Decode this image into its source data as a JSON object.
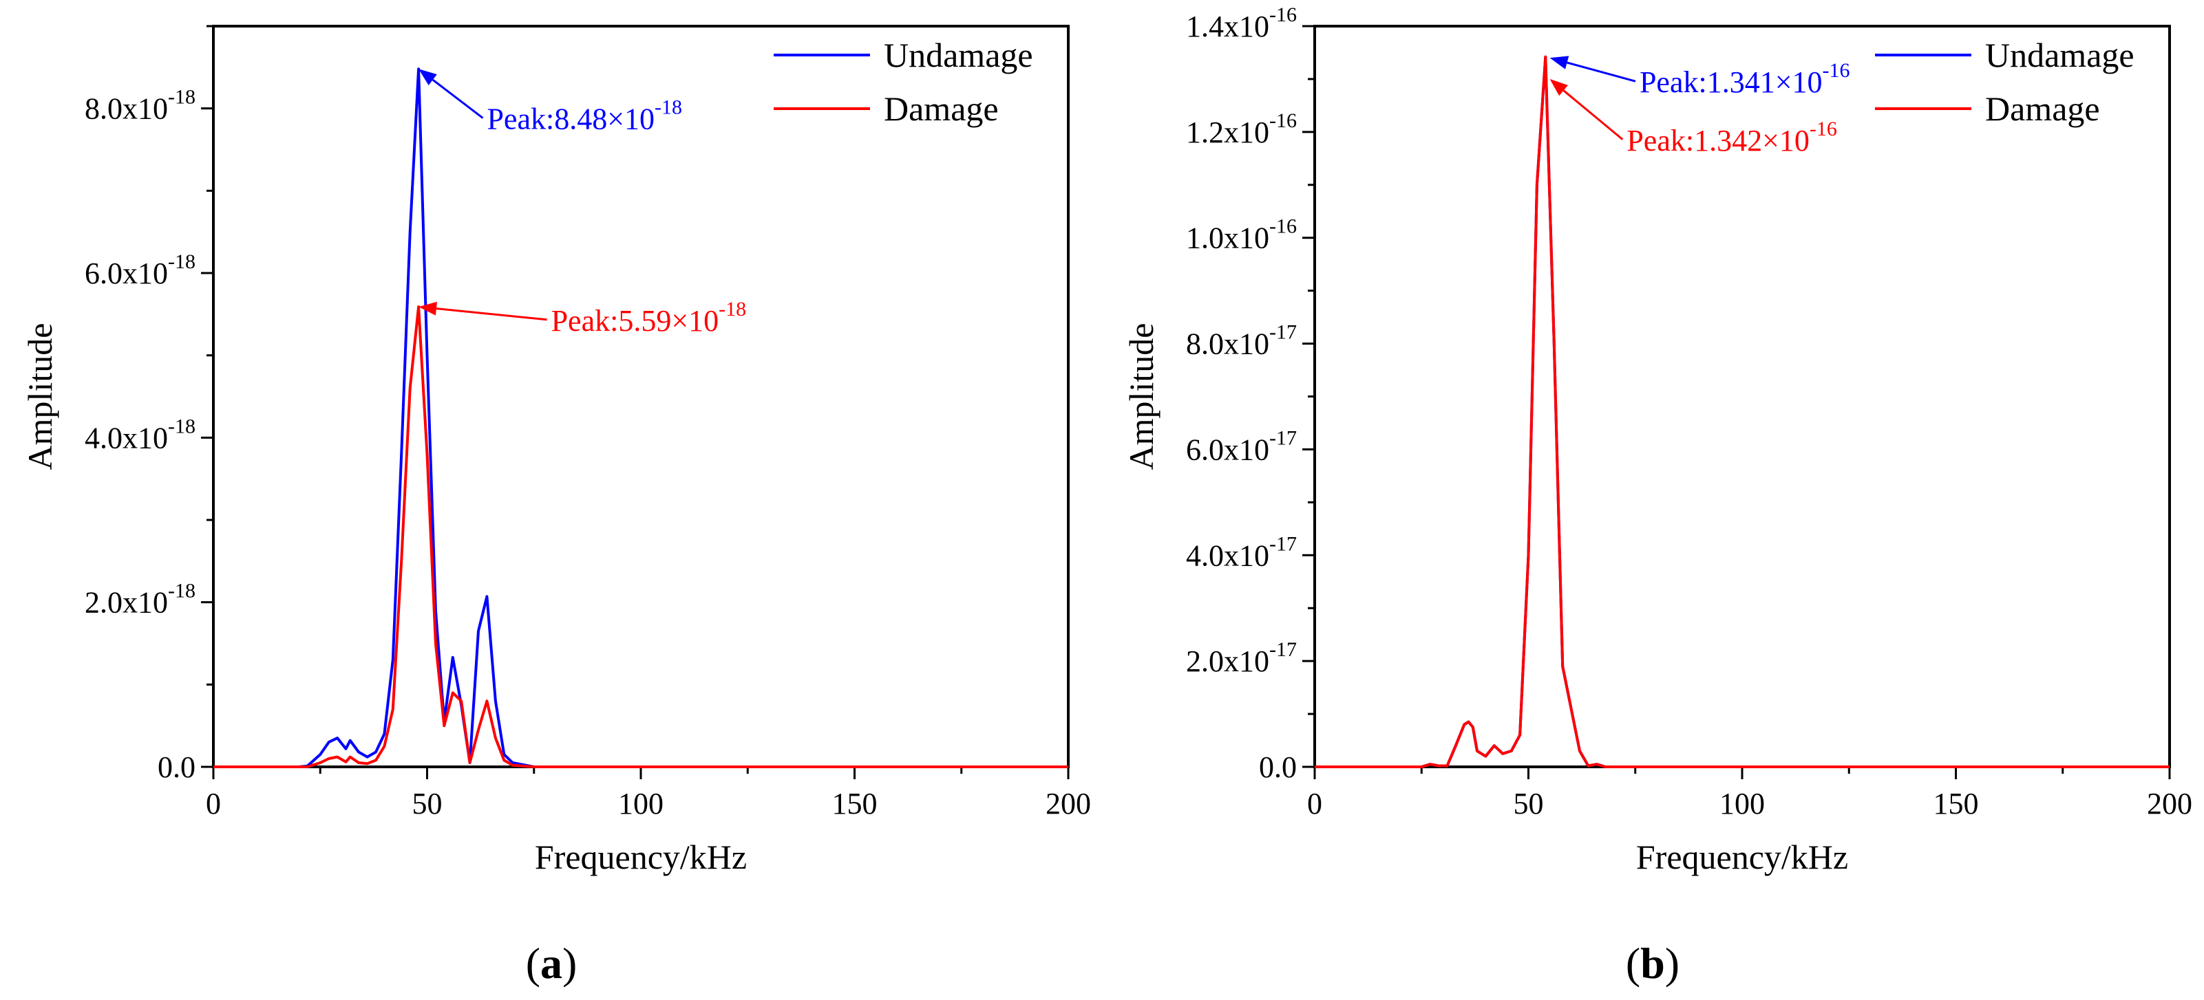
{
  "chart_data": [
    {
      "type": "line",
      "panel_label": "(a)",
      "panel_letter": "a",
      "xlabel": "Frequency/kHz",
      "ylabel": "Amplitude",
      "xlim": [
        0,
        200
      ],
      "ylim": [
        0,
        9e-18
      ],
      "xticks": [
        0,
        50,
        100,
        150,
        200
      ],
      "xtick_labels": [
        "0",
        "50",
        "100",
        "150",
        "200"
      ],
      "yticks": [
        0,
        2e-18,
        4e-18,
        6e-18,
        8e-18
      ],
      "ytick_labels": [
        {
          "mantissa": "0.0",
          "exp": ""
        },
        {
          "mantissa": "2.0x10",
          "exp": "-18"
        },
        {
          "mantissa": "4.0x10",
          "exp": "-18"
        },
        {
          "mantissa": "6.0x10",
          "exp": "-18"
        },
        {
          "mantissa": "8.0x10",
          "exp": "-18"
        }
      ],
      "legend_position": "top-right",
      "series": [
        {
          "name": "Undamage",
          "color": "#0000ff",
          "x": [
            0,
            5,
            10,
            15,
            20,
            22,
            25,
            27,
            29,
            31,
            32,
            34,
            36,
            38,
            40,
            42,
            44,
            46,
            48,
            50,
            52,
            54,
            56,
            58,
            60,
            62,
            64,
            66,
            68,
            70,
            75,
            80,
            100,
            150,
            200
          ],
          "y": [
            0,
            0,
            0,
            0,
            0,
            1e-20,
            1.5e-19,
            3e-19,
            3.5e-19,
            2.2e-19,
            3.2e-19,
            1.8e-19,
            1.2e-19,
            1.8e-19,
            4e-19,
            1.3e-18,
            3.8e-18,
            6.5e-18,
            8.48e-18,
            5e-18,
            1.9e-18,
            5.5e-19,
            1.33e-18,
            7.5e-19,
            5e-20,
            1.65e-18,
            2.07e-18,
            8e-19,
            1.5e-19,
            5e-20,
            0,
            0,
            0,
            0,
            0
          ]
        },
        {
          "name": "Damage",
          "color": "#ff0000",
          "x": [
            0,
            5,
            10,
            15,
            20,
            22,
            25,
            27,
            29,
            31,
            32,
            34,
            36,
            38,
            40,
            42,
            44,
            46,
            48,
            50,
            52,
            54,
            56,
            58,
            60,
            62,
            64,
            66,
            68,
            70,
            75,
            80,
            100,
            150,
            200
          ],
          "y": [
            0,
            0,
            0,
            0,
            0,
            0,
            5e-20,
            1e-19,
            1.2e-19,
            6e-20,
            1.2e-19,
            5e-20,
            4e-20,
            8e-20,
            2.5e-19,
            7e-19,
            2.5e-18,
            4.6e-18,
            5.59e-18,
            3.8e-18,
            1.5e-18,
            5e-19,
            9e-19,
            8e-19,
            5e-20,
            4.5e-19,
            8e-19,
            3.5e-19,
            8e-20,
            2e-20,
            0,
            0,
            0,
            0,
            0
          ]
        }
      ],
      "annotations": [
        {
          "mantissa": "Peak:8.48×10",
          "exp": "-18",
          "color": "#0000ff",
          "target": [
            48,
            8.48e-18
          ],
          "text_at": [
            64,
            7.75e-18
          ],
          "anchor": "start"
        },
        {
          "mantissa": "Peak:5.59×10",
          "exp": "-18",
          "color": "#ff0000",
          "target": [
            48,
            5.59e-18
          ],
          "text_at": [
            79,
            5.3e-18
          ],
          "anchor": "start"
        }
      ]
    },
    {
      "type": "line",
      "panel_label": "(b)",
      "panel_letter": "b",
      "xlabel": "Frequency/kHz",
      "ylabel": "Amplitude",
      "xlim": [
        0,
        200
      ],
      "ylim": [
        0,
        1.4e-16
      ],
      "xticks": [
        0,
        50,
        100,
        150,
        200
      ],
      "xtick_labels": [
        "0",
        "50",
        "100",
        "150",
        "200"
      ],
      "yticks": [
        0,
        2e-17,
        4e-17,
        6e-17,
        8e-17,
        1e-16,
        1.2e-16,
        1.4e-16
      ],
      "ytick_labels": [
        {
          "mantissa": "0.0",
          "exp": ""
        },
        {
          "mantissa": "2.0x10",
          "exp": "-17"
        },
        {
          "mantissa": "4.0x10",
          "exp": "-17"
        },
        {
          "mantissa": "6.0x10",
          "exp": "-17"
        },
        {
          "mantissa": "8.0x10",
          "exp": "-17"
        },
        {
          "mantissa": "1.0x10",
          "exp": "-16"
        },
        {
          "mantissa": "1.2x10",
          "exp": "-16"
        },
        {
          "mantissa": "1.4x10",
          "exp": "-16"
        }
      ],
      "legend_position": "top-right",
      "series": [
        {
          "name": "Undamage",
          "color": "#0000ff",
          "x": [
            0,
            10,
            20,
            25,
            27,
            29,
            31,
            33,
            35,
            36,
            37,
            38,
            40,
            42,
            44,
            46,
            48,
            50,
            52,
            54,
            56,
            58,
            60,
            62,
            64,
            66,
            68,
            70,
            80,
            100,
            150,
            200
          ],
          "y": [
            0,
            0,
            0,
            0,
            5e-19,
            2e-19,
            2e-19,
            4e-18,
            8e-18,
            8.5e-18,
            7.5e-18,
            3e-18,
            2e-18,
            4e-18,
            2.5e-18,
            3e-18,
            6e-18,
            4e-17,
            1.1e-16,
            1.341e-16,
            8e-17,
            1.9e-17,
            1.1e-17,
            3e-18,
            2e-19,
            5e-19,
            0,
            0,
            0,
            0,
            0,
            0
          ]
        },
        {
          "name": "Damage",
          "color": "#ff0000",
          "x": [
            0,
            10,
            20,
            25,
            27,
            29,
            31,
            33,
            35,
            36,
            37,
            38,
            40,
            42,
            44,
            46,
            48,
            50,
            52,
            54,
            56,
            58,
            60,
            62,
            64,
            66,
            68,
            70,
            80,
            100,
            150,
            200
          ],
          "y": [
            0,
            0,
            0,
            0,
            5e-19,
            2e-19,
            2e-19,
            4e-18,
            8e-18,
            8.5e-18,
            7.5e-18,
            3e-18,
            2e-18,
            4e-18,
            2.5e-18,
            3e-18,
            6e-18,
            4e-17,
            1.1e-16,
            1.342e-16,
            8e-17,
            1.9e-17,
            1.1e-17,
            3e-18,
            2e-19,
            5e-19,
            0,
            0,
            0,
            0,
            0,
            0
          ]
        }
      ],
      "annotations": [
        {
          "mantissa": "Peak:1.341×10",
          "exp": "-16",
          "color": "#0000ff",
          "target": [
            55,
            1.34e-16
          ],
          "text_at": [
            76,
            1.275e-16
          ],
          "anchor": "start"
        },
        {
          "mantissa": "Peak:1.342×10",
          "exp": "-16",
          "color": "#ff0000",
          "target": [
            55,
            1.3e-16
          ],
          "text_at": [
            73,
            1.165e-16
          ],
          "anchor": "start"
        }
      ]
    }
  ]
}
